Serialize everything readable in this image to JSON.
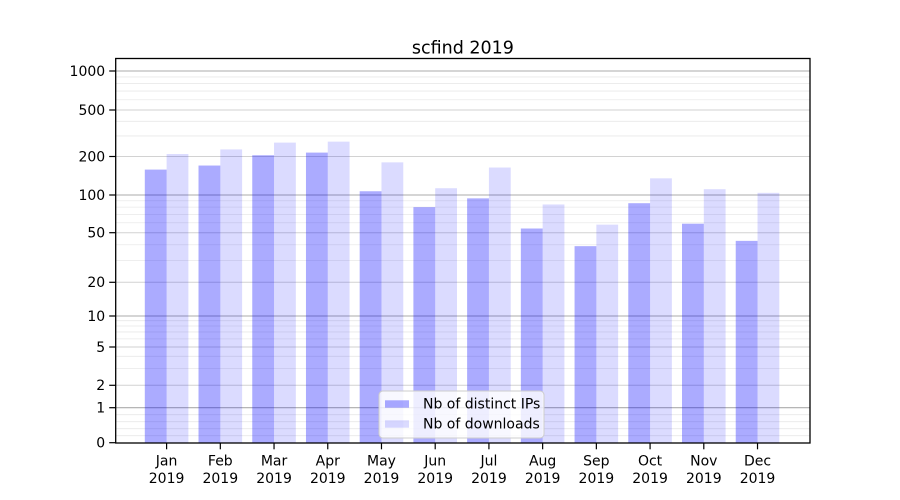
{
  "figure": {
    "title": "scfind 2019",
    "background_color": "#ffffff"
  },
  "chart_data": {
    "type": "bar",
    "title": "scfind 2019",
    "x_axis": {
      "categories": [
        "Jan",
        "Feb",
        "Mar",
        "Apr",
        "May",
        "Jun",
        "Jul",
        "Aug",
        "Sep",
        "Oct",
        "Nov",
        "Dec"
      ],
      "sublabel": "2019"
    },
    "y_axis": {
      "scale": "symlog",
      "ticks": [
        0,
        1,
        2,
        5,
        10,
        20,
        50,
        100,
        200,
        500,
        1000
      ],
      "minor_ticks": [
        0.2,
        0.4,
        0.6,
        0.8,
        3,
        4,
        6,
        7,
        8,
        9,
        30,
        40,
        60,
        70,
        80,
        90,
        300,
        400,
        600,
        700,
        800,
        900
      ],
      "range": [
        0,
        1300
      ],
      "label": ""
    },
    "series": [
      {
        "name": "Nb of distinct IPs",
        "color": "rgba(0,0,255,0.33)",
        "color_hex": "#aaaaf9",
        "values": [
          158,
          170,
          205,
          216,
          107,
          80,
          94,
          54,
          39,
          86,
          59,
          43
        ]
      },
      {
        "name": "Nb of downloads",
        "color": "rgba(0,0,255,0.14)",
        "color_hex": "#dcdcfa",
        "values": [
          210,
          230,
          263,
          268,
          180,
          113,
          164,
          84,
          58,
          135,
          111,
          104
        ]
      }
    ],
    "legend": {
      "position": "inside-bottom-center",
      "border_color": "#cccccc",
      "background_color": "#ffffff"
    },
    "grid": {
      "decade_line_color": "#ababab",
      "labeled_line_color": "#d2d2d2",
      "minor_line_color": "#e9e9e9",
      "visible": "major+minor"
    }
  }
}
